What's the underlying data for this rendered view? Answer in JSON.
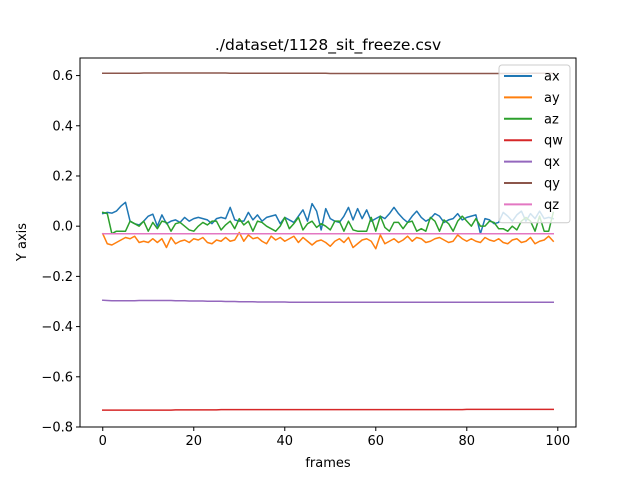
{
  "chart_data": {
    "type": "line",
    "title": "./dataset/1128_sit_freeze.csv",
    "xlabel": "frames",
    "ylabel": "Y axis",
    "xlim": [
      -5,
      104
    ],
    "ylim": [
      -0.8,
      0.67
    ],
    "x_ticks": [
      0,
      20,
      40,
      60,
      80,
      100
    ],
    "y_ticks": [
      -0.8,
      -0.6,
      -0.4,
      -0.2,
      0.0,
      0.2,
      0.4,
      0.6
    ],
    "x_tick_labels": [
      "0",
      "20",
      "40",
      "60",
      "80",
      "100"
    ],
    "y_tick_labels": [
      "−0.8",
      "−0.6",
      "−0.4",
      "−0.2",
      "0.0",
      "0.2",
      "0.4",
      "0.6"
    ],
    "grid": false,
    "legend_position": "top-right",
    "x": [
      0,
      1,
      2,
      3,
      4,
      5,
      6,
      7,
      8,
      9,
      10,
      11,
      12,
      13,
      14,
      15,
      16,
      17,
      18,
      19,
      20,
      21,
      22,
      23,
      24,
      25,
      26,
      27,
      28,
      29,
      30,
      31,
      32,
      33,
      34,
      35,
      36,
      37,
      38,
      39,
      40,
      41,
      42,
      43,
      44,
      45,
      46,
      47,
      48,
      49,
      50,
      51,
      52,
      53,
      54,
      55,
      56,
      57,
      58,
      59,
      60,
      61,
      62,
      63,
      64,
      65,
      66,
      67,
      68,
      69,
      70,
      71,
      72,
      73,
      74,
      75,
      76,
      77,
      78,
      79,
      80,
      81,
      82,
      83,
      84,
      85,
      86,
      87,
      88,
      89,
      90,
      91,
      92,
      93,
      94,
      95,
      96,
      97,
      98,
      99
    ],
    "series": [
      {
        "name": "ax",
        "color": "#1f77b4",
        "values": [
          0.05,
          0.055,
          0.052,
          0.06,
          0.08,
          0.095,
          0.02,
          0.01,
          0.005,
          0.02,
          0.04,
          0.048,
          0.0,
          0.045,
          0.01,
          0.02,
          0.025,
          0.015,
          0.035,
          0.02,
          0.03,
          0.035,
          0.03,
          0.025,
          0.01,
          0.03,
          0.035,
          0.03,
          0.075,
          0.025,
          0.02,
          0.02,
          0.055,
          0.025,
          0.045,
          0.02,
          0.035,
          0.04,
          0.045,
          0.01,
          0.035,
          0.025,
          0.015,
          0.04,
          0.065,
          0.02,
          0.09,
          0.06,
          -0.015,
          0.07,
          0.03,
          0.02,
          0.015,
          0.04,
          0.075,
          0.025,
          0.07,
          0.03,
          0.065,
          0.02,
          0.03,
          0.04,
          0.03,
          0.05,
          0.075,
          0.05,
          0.03,
          0.015,
          0.04,
          0.06,
          0.035,
          0.02,
          0.03,
          0.05,
          0.04,
          0.015,
          0.025,
          0.03,
          0.05,
          0.025,
          0.035,
          0.04,
          0.045,
          -0.03,
          0.03,
          0.025,
          0.01,
          0.015,
          0.055,
          0.04,
          0.02,
          0.045,
          0.06,
          0.02,
          0.05,
          0.03,
          0.06,
          0.03,
          0.035,
          0.03
        ]
      },
      {
        "name": "ay",
        "color": "#ff7f0e",
        "values": [
          -0.03,
          -0.07,
          -0.075,
          -0.065,
          -0.055,
          -0.045,
          -0.05,
          -0.04,
          -0.065,
          -0.06,
          -0.065,
          -0.05,
          -0.065,
          -0.05,
          -0.085,
          -0.045,
          -0.07,
          -0.06,
          -0.055,
          -0.065,
          -0.05,
          -0.055,
          -0.045,
          -0.065,
          -0.07,
          -0.055,
          -0.06,
          -0.045,
          -0.06,
          -0.055,
          -0.025,
          -0.06,
          -0.035,
          -0.05,
          -0.045,
          -0.06,
          -0.07,
          -0.04,
          -0.055,
          -0.045,
          -0.06,
          -0.05,
          -0.04,
          -0.065,
          -0.045,
          -0.06,
          -0.075,
          -0.06,
          -0.055,
          -0.065,
          -0.08,
          -0.06,
          -0.05,
          -0.065,
          -0.045,
          -0.085,
          -0.07,
          -0.055,
          -0.05,
          -0.06,
          -0.09,
          -0.035,
          -0.07,
          -0.06,
          -0.05,
          -0.065,
          -0.055,
          -0.04,
          -0.06,
          -0.045,
          -0.05,
          -0.065,
          -0.06,
          -0.05,
          -0.045,
          -0.055,
          -0.065,
          -0.06,
          -0.035,
          -0.05,
          -0.06,
          -0.05,
          -0.06,
          -0.065,
          -0.045,
          -0.055,
          -0.06,
          -0.05,
          -0.065,
          -0.07,
          -0.055,
          -0.05,
          -0.065,
          -0.06,
          -0.045,
          -0.07,
          -0.06,
          -0.055,
          -0.04,
          -0.06
        ]
      },
      {
        "name": "az",
        "color": "#2ca02c",
        "values": [
          0.055,
          0.05,
          -0.03,
          -0.02,
          -0.02,
          -0.02,
          0.02,
          0.01,
          0.0,
          0.02,
          -0.02,
          0.015,
          -0.01,
          0.02,
          0.015,
          -0.02,
          0.01,
          0.015,
          0.0,
          -0.015,
          -0.02,
          0.0,
          0.015,
          0.005,
          0.02,
          0.02,
          -0.015,
          0.005,
          0.02,
          -0.01,
          0.03,
          0.005,
          0.02,
          -0.02,
          0.02,
          0.015,
          0.0,
          -0.01,
          -0.02,
          0.0,
          0.035,
          -0.01,
          0.01,
          0.035,
          -0.015,
          0.01,
          0.02,
          -0.005,
          0.01,
          0.0,
          -0.015,
          0.02,
          0.02,
          -0.02,
          0.02,
          -0.015,
          -0.02,
          -0.02,
          -0.02,
          0.035,
          -0.02,
          0.04,
          -0.005,
          -0.02,
          0.015,
          0.015,
          -0.01,
          0.015,
          0.02,
          -0.02,
          -0.01,
          -0.02,
          0.035,
          0.02,
          -0.02,
          0.025,
          0.01,
          -0.02,
          0.02,
          0.04,
          0.02,
          0.0,
          0.03,
          0.0,
          0.0,
          0.02,
          0.015,
          -0.01,
          -0.01,
          -0.02,
          0.0,
          -0.015,
          0.02,
          0.035,
          0.02,
          -0.02,
          0.04,
          -0.02,
          -0.02,
          0.055
        ]
      },
      {
        "name": "qw",
        "color": "#d62728",
        "values": [
          -0.733,
          -0.733,
          -0.733,
          -0.733,
          -0.733,
          -0.733,
          -0.733,
          -0.733,
          -0.733,
          -0.733,
          -0.733,
          -0.733,
          -0.733,
          -0.733,
          -0.733,
          -0.733,
          -0.732,
          -0.732,
          -0.732,
          -0.732,
          -0.732,
          -0.732,
          -0.732,
          -0.732,
          -0.732,
          -0.732,
          -0.731,
          -0.731,
          -0.731,
          -0.731,
          -0.731,
          -0.731,
          -0.731,
          -0.731,
          -0.731,
          -0.731,
          -0.731,
          -0.731,
          -0.731,
          -0.731,
          -0.731,
          -0.731,
          -0.731,
          -0.731,
          -0.731,
          -0.731,
          -0.731,
          -0.731,
          -0.731,
          -0.731,
          -0.731,
          -0.731,
          -0.731,
          -0.731,
          -0.731,
          -0.731,
          -0.731,
          -0.731,
          -0.731,
          -0.731,
          -0.731,
          -0.731,
          -0.731,
          -0.731,
          -0.731,
          -0.731,
          -0.731,
          -0.731,
          -0.731,
          -0.731,
          -0.731,
          -0.731,
          -0.731,
          -0.731,
          -0.731,
          -0.731,
          -0.731,
          -0.731,
          -0.731,
          -0.731,
          -0.73,
          -0.73,
          -0.73,
          -0.73,
          -0.73,
          -0.73,
          -0.73,
          -0.73,
          -0.73,
          -0.73,
          -0.73,
          -0.73,
          -0.73,
          -0.73,
          -0.73,
          -0.73,
          -0.73,
          -0.73,
          -0.73,
          -0.73
        ]
      },
      {
        "name": "qx",
        "color": "#9467bd",
        "values": [
          -0.295,
          -0.296,
          -0.297,
          -0.297,
          -0.297,
          -0.297,
          -0.297,
          -0.297,
          -0.296,
          -0.296,
          -0.296,
          -0.296,
          -0.296,
          -0.296,
          -0.296,
          -0.296,
          -0.297,
          -0.297,
          -0.297,
          -0.298,
          -0.298,
          -0.298,
          -0.298,
          -0.299,
          -0.299,
          -0.299,
          -0.299,
          -0.3,
          -0.3,
          -0.3,
          -0.301,
          -0.301,
          -0.301,
          -0.301,
          -0.302,
          -0.302,
          -0.302,
          -0.302,
          -0.302,
          -0.302,
          -0.302,
          -0.303,
          -0.303,
          -0.303,
          -0.303,
          -0.303,
          -0.303,
          -0.303,
          -0.303,
          -0.303,
          -0.303,
          -0.303,
          -0.303,
          -0.303,
          -0.303,
          -0.303,
          -0.303,
          -0.303,
          -0.303,
          -0.303,
          -0.303,
          -0.303,
          -0.303,
          -0.303,
          -0.303,
          -0.303,
          -0.303,
          -0.303,
          -0.303,
          -0.303,
          -0.303,
          -0.303,
          -0.303,
          -0.303,
          -0.303,
          -0.303,
          -0.303,
          -0.303,
          -0.303,
          -0.303,
          -0.303,
          -0.303,
          -0.303,
          -0.303,
          -0.303,
          -0.303,
          -0.303,
          -0.303,
          -0.303,
          -0.303,
          -0.303,
          -0.303,
          -0.303,
          -0.303,
          -0.303,
          -0.303,
          -0.303,
          -0.303,
          -0.303,
          -0.303
        ]
      },
      {
        "name": "qy",
        "color": "#8c564b",
        "values": [
          0.609,
          0.609,
          0.609,
          0.609,
          0.609,
          0.609,
          0.609,
          0.609,
          0.609,
          0.61,
          0.61,
          0.61,
          0.61,
          0.61,
          0.61,
          0.61,
          0.61,
          0.61,
          0.61,
          0.61,
          0.61,
          0.61,
          0.61,
          0.61,
          0.61,
          0.61,
          0.61,
          0.61,
          0.609,
          0.609,
          0.609,
          0.609,
          0.609,
          0.609,
          0.609,
          0.609,
          0.609,
          0.609,
          0.609,
          0.609,
          0.609,
          0.609,
          0.609,
          0.609,
          0.609,
          0.609,
          0.609,
          0.609,
          0.609,
          0.609,
          0.608,
          0.608,
          0.608,
          0.608,
          0.608,
          0.608,
          0.608,
          0.608,
          0.608,
          0.608,
          0.608,
          0.608,
          0.608,
          0.608,
          0.608,
          0.608,
          0.608,
          0.608,
          0.608,
          0.608,
          0.608,
          0.608,
          0.608,
          0.608,
          0.608,
          0.608,
          0.608,
          0.608,
          0.608,
          0.608,
          0.608,
          0.608,
          0.608,
          0.608,
          0.608,
          0.608,
          0.608,
          0.608,
          0.608,
          0.608,
          0.608,
          0.608,
          0.608,
          0.608,
          0.609,
          0.609,
          0.609,
          0.609,
          0.609,
          0.609
        ]
      },
      {
        "name": "qz",
        "color": "#e377c2",
        "values": [
          -0.03,
          -0.03,
          -0.03,
          -0.03,
          -0.03,
          -0.03,
          -0.03,
          -0.03,
          -0.03,
          -0.03,
          -0.03,
          -0.03,
          -0.03,
          -0.03,
          -0.03,
          -0.03,
          -0.03,
          -0.03,
          -0.03,
          -0.03,
          -0.03,
          -0.03,
          -0.03,
          -0.03,
          -0.03,
          -0.03,
          -0.03,
          -0.03,
          -0.03,
          -0.03,
          -0.03,
          -0.03,
          -0.03,
          -0.03,
          -0.03,
          -0.03,
          -0.03,
          -0.03,
          -0.03,
          -0.03,
          -0.03,
          -0.03,
          -0.03,
          -0.03,
          -0.03,
          -0.03,
          -0.03,
          -0.03,
          -0.03,
          -0.03,
          -0.03,
          -0.03,
          -0.03,
          -0.03,
          -0.03,
          -0.03,
          -0.03,
          -0.03,
          -0.03,
          -0.03,
          -0.03,
          -0.03,
          -0.03,
          -0.03,
          -0.03,
          -0.03,
          -0.03,
          -0.03,
          -0.03,
          -0.03,
          -0.03,
          -0.03,
          -0.03,
          -0.03,
          -0.03,
          -0.03,
          -0.03,
          -0.03,
          -0.03,
          -0.03,
          -0.03,
          -0.03,
          -0.03,
          -0.03,
          -0.03,
          -0.03,
          -0.03,
          -0.03,
          -0.03,
          -0.03,
          -0.03,
          -0.03,
          -0.03,
          -0.03,
          -0.03,
          -0.03,
          -0.03,
          -0.03,
          -0.03,
          -0.03
        ]
      }
    ]
  }
}
